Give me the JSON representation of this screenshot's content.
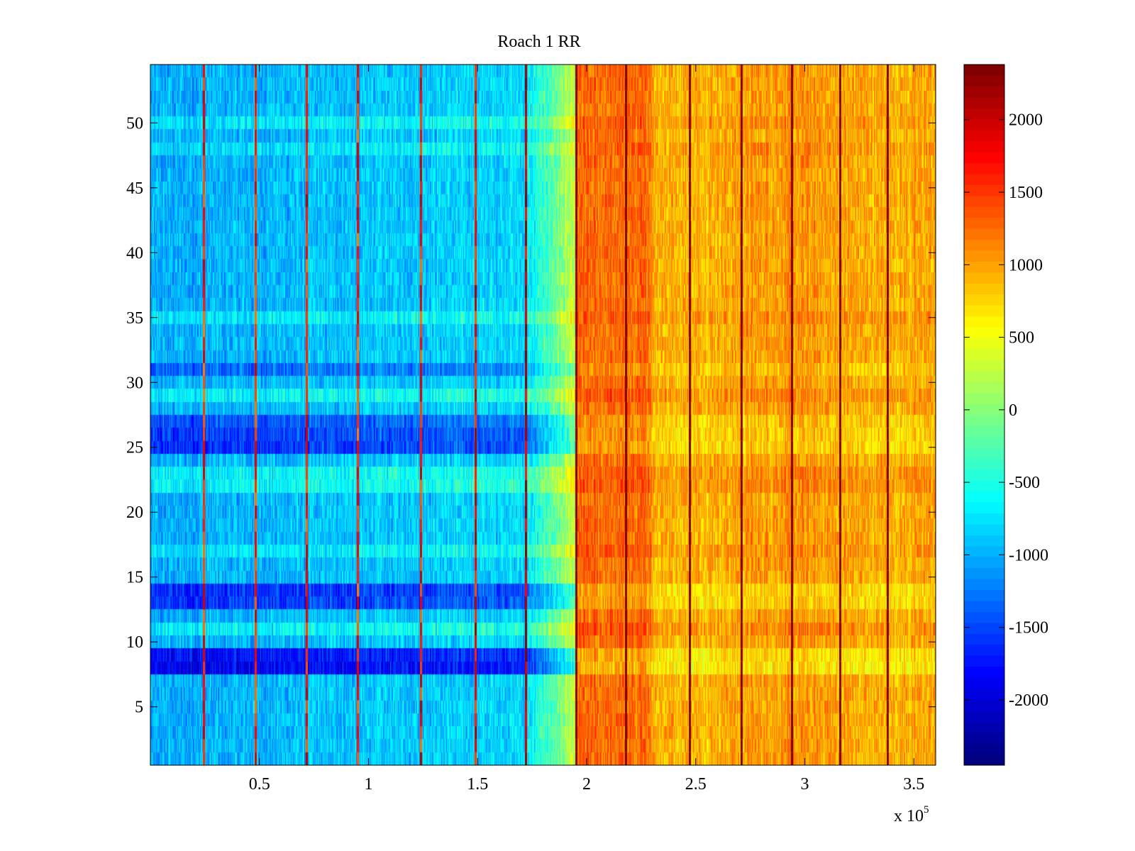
{
  "chart_data": {
    "type": "heatmap",
    "title": "Roach 1 RR",
    "xlabel": "",
    "ylabel": "",
    "x_multiplier_label": "x 10",
    "x_multiplier_exp": "5",
    "xlim": [
      0,
      3.6
    ],
    "ylim": [
      0.5,
      54.5
    ],
    "xticks": [
      0.5,
      1,
      1.5,
      2,
      2.5,
      3,
      3.5
    ],
    "xtick_labels": [
      "0.5",
      "1",
      "1.5",
      "2",
      "2.5",
      "3",
      "3.5"
    ],
    "yticks": [
      5,
      10,
      15,
      20,
      25,
      30,
      35,
      40,
      45,
      50
    ],
    "ytick_labels": [
      "5",
      "10",
      "15",
      "20",
      "25",
      "30",
      "35",
      "40",
      "45",
      "50"
    ],
    "rows": 54,
    "colormap": "jet",
    "clim": [
      -2450,
      2380
    ],
    "colorbar_ticks": [
      -2000,
      -1500,
      -1000,
      -500,
      0,
      500,
      1000,
      1500,
      2000
    ],
    "colorbar_labels": [
      "-2000",
      "-1500",
      "-1000",
      "-500",
      "0",
      "500",
      "1000",
      "1500",
      "2000"
    ],
    "column_segments": [
      {
        "x_start": 0.0,
        "x_end": 1.72,
        "mean": -1000
      },
      {
        "x_start": 1.72,
        "x_end": 1.95,
        "mean": -300
      },
      {
        "x_start": 1.95,
        "x_end": 2.3,
        "mean": 1250
      },
      {
        "x_start": 2.3,
        "x_end": 3.6,
        "mean": 1000
      }
    ],
    "stripe_columns": [
      {
        "x": 0.245,
        "value": 1600
      },
      {
        "x": 0.48,
        "value": 1600
      },
      {
        "x": 0.715,
        "value": 1700
      },
      {
        "x": 0.95,
        "value": 1600
      },
      {
        "x": 1.24,
        "value": 1700
      },
      {
        "x": 1.49,
        "value": 1800
      },
      {
        "x": 1.72,
        "value": 2100
      },
      {
        "x": 1.95,
        "value": 2380
      },
      {
        "x": 2.18,
        "value": 2380
      },
      {
        "x": 2.47,
        "value": 2380
      },
      {
        "x": 2.71,
        "value": 2380
      },
      {
        "x": 2.94,
        "value": 2380
      },
      {
        "x": 3.16,
        "value": 2380
      },
      {
        "x": 3.38,
        "value": 2380
      }
    ],
    "row_offsets": [
      {
        "y": 8,
        "offset": -900
      },
      {
        "y": 9,
        "offset": -800
      },
      {
        "y": 13,
        "offset": -600
      },
      {
        "y": 14,
        "offset": -650
      },
      {
        "y": 25,
        "offset": -600
      },
      {
        "y": 26,
        "offset": -550
      },
      {
        "y": 27,
        "offset": -450
      },
      {
        "y": 31,
        "offset": -350
      },
      {
        "y": 11,
        "offset": 300
      },
      {
        "y": 17,
        "offset": 250
      },
      {
        "y": 22,
        "offset": 350
      },
      {
        "y": 23,
        "offset": 300
      },
      {
        "y": 29,
        "offset": 300
      },
      {
        "y": 35,
        "offset": 250
      },
      {
        "y": 48,
        "offset": 200
      },
      {
        "y": 50,
        "offset": 250
      }
    ]
  }
}
